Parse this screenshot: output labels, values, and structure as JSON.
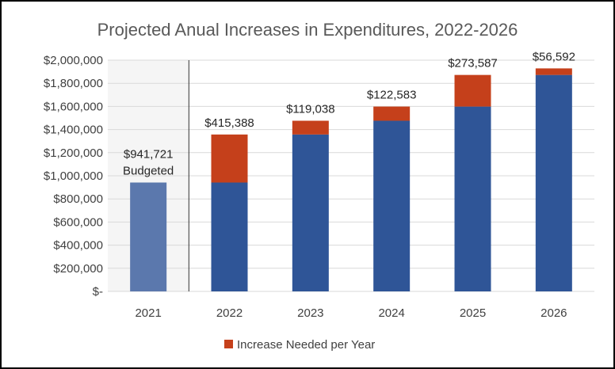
{
  "chart_data": {
    "type": "bar",
    "title": "Projected Anual Increases in Expenditures, 2022-2026",
    "categories": [
      "2021",
      "2022",
      "2023",
      "2024",
      "2025",
      "2026"
    ],
    "series": [
      {
        "values": [
          941721,
          941721,
          1357109,
          1476147,
          1598730,
          1872317
        ]
      },
      {
        "name": "Increase Needed per Year",
        "values": [
          0,
          415388,
          119038,
          122583,
          273587,
          56592
        ]
      }
    ],
    "data_labels": [
      {
        "category": "2021",
        "lines": [
          "$941,721",
          "Budgeted"
        ]
      },
      {
        "category": "2022",
        "lines": [
          "$415,388"
        ]
      },
      {
        "category": "2023",
        "lines": [
          "$119,038"
        ]
      },
      {
        "category": "2024",
        "lines": [
          "$122,583"
        ]
      },
      {
        "category": "2025",
        "lines": [
          "$273,587"
        ]
      },
      {
        "category": "2026",
        "lines": [
          "$56,592"
        ]
      }
    ],
    "ylim": [
      0,
      2000000
    ],
    "yticks": [
      0,
      200000,
      400000,
      600000,
      800000,
      1000000,
      1200000,
      1400000,
      1600000,
      1800000,
      2000000
    ],
    "ytick_labels": [
      "$-",
      "$200,000",
      "$400,000",
      "$600,000",
      "$800,000",
      "$1,000,000",
      "$1,200,000",
      "$1,400,000",
      "$1,600,000",
      "$1,800,000",
      "$2,000,000"
    ],
    "grid": true,
    "legend": {
      "position": "bottom",
      "entries": [
        "Increase Needed per Year"
      ]
    },
    "colors": {
      "base": "#2f5597",
      "base_2021": "#5b78ad",
      "increase": "#c5401b",
      "shade_2021": "#f5f5f5",
      "grid": "#d9d9d9",
      "divider": "#333333"
    }
  }
}
